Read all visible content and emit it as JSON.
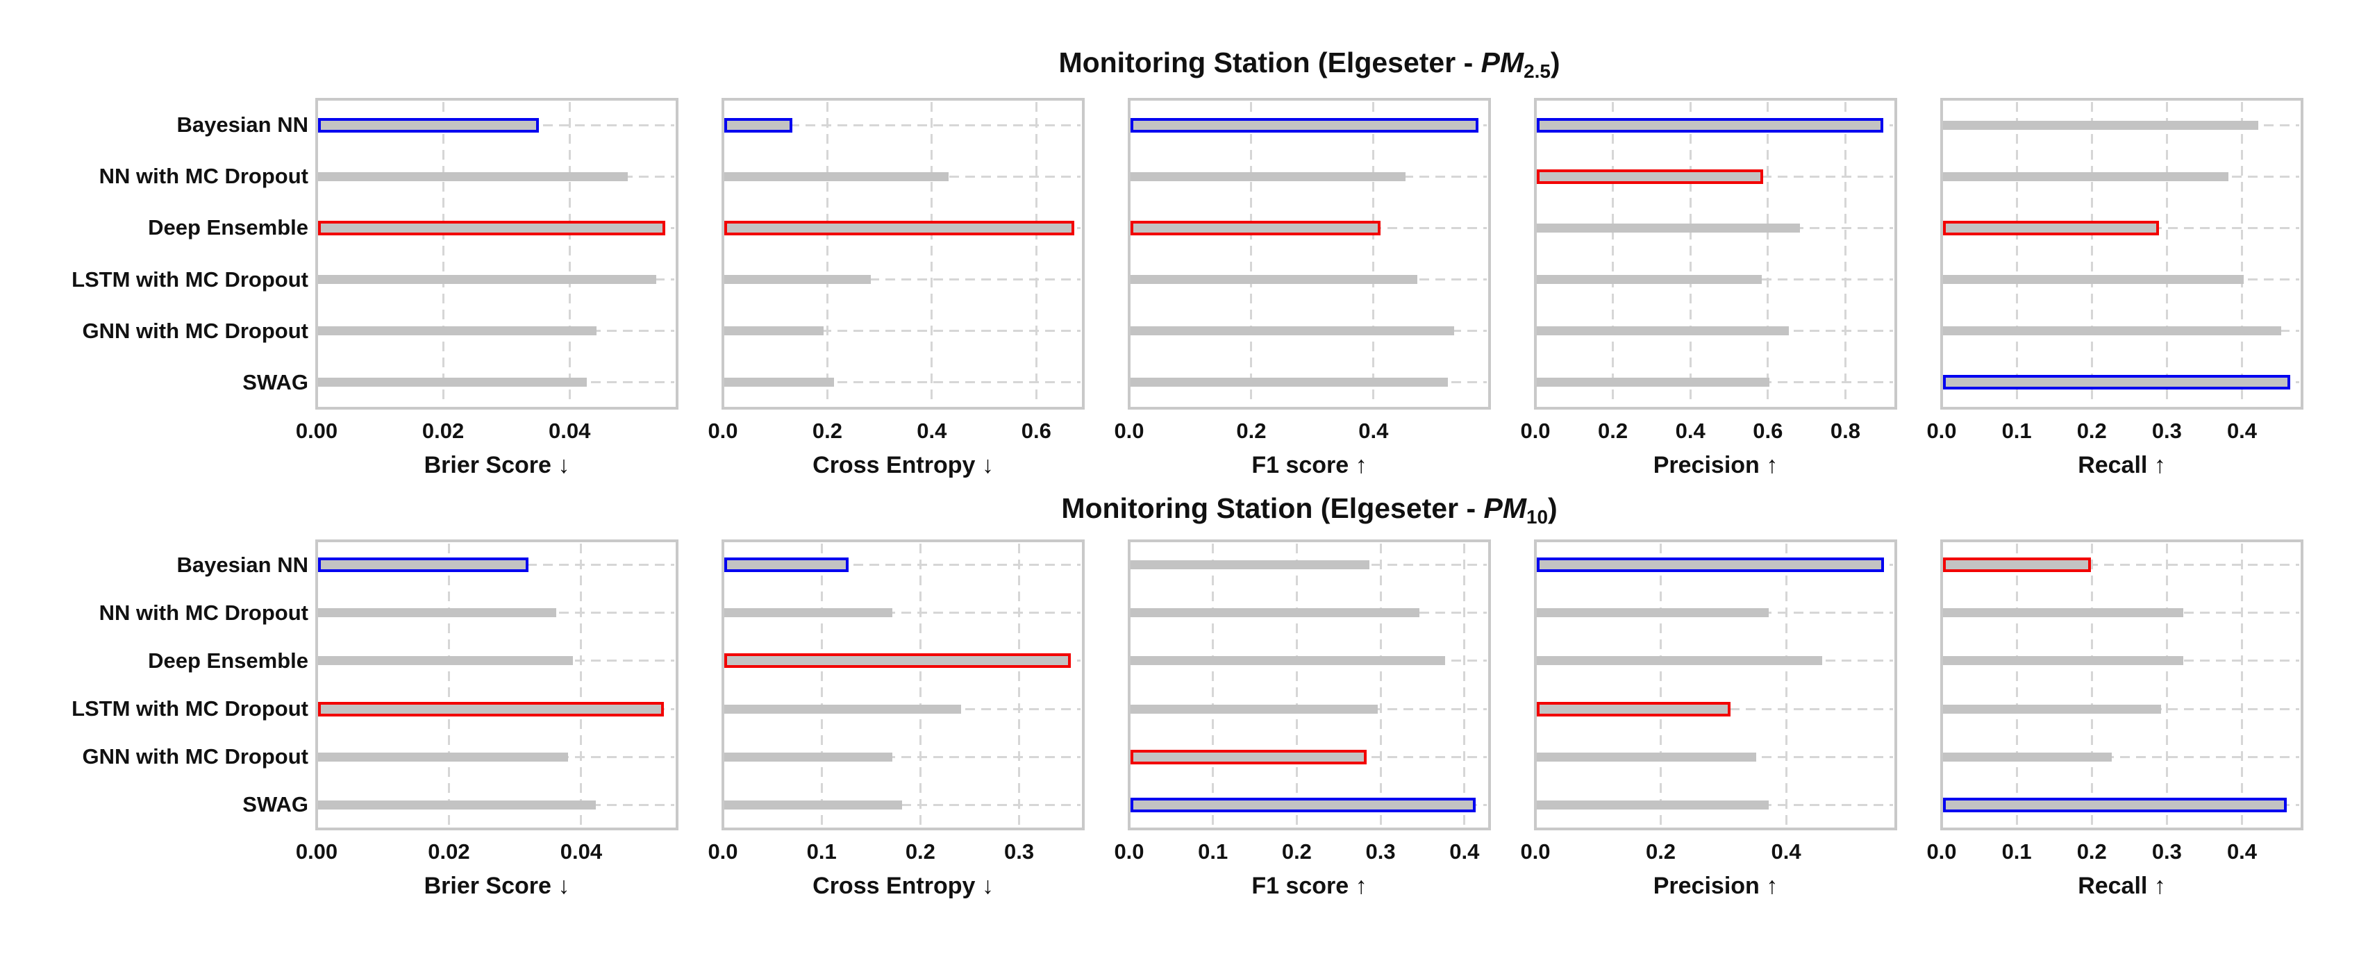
{
  "figure": {
    "background": "#ffffff",
    "colors": {
      "bar_grey": "#c3c3c3",
      "best_outline_blue": "#0202f0",
      "worst_outline_red": "#f20202",
      "grid": "#d6d6d6",
      "spine": "#c9c9c9",
      "text": "#111111"
    }
  },
  "chart_data": {
    "type": "bar",
    "orientation": "horizontal",
    "grid": "dashed",
    "legend_position": "none",
    "categories": [
      "Bayesian NN",
      "NN with MC Dropout",
      "Deep Ensemble",
      "LSTM with MC Dropout",
      "GNN with MC Dropout",
      "SWAG"
    ],
    "highlight_meaning": {
      "blue_outline": "best model for metric",
      "red_outline": "worst model for metric"
    },
    "rows": [
      {
        "title": {
          "prefix": "Monitoring Station (Elgeseter - ",
          "pm": "PM",
          "sub": "2.5",
          "suffix": ")",
          "full_text": "Monitoring Station (Elgeseter - PM2.5)"
        },
        "panels": [
          {
            "xlabel": "Brier Score ↓",
            "xlim": [
              0,
              0.057
            ],
            "tick_values": [
              0,
              0.02,
              0.04
            ],
            "ticks": [
              "0.00",
              "0.02",
              "0.04"
            ],
            "values": [
              0.034,
              0.049,
              0.054,
              0.0535,
              0.044,
              0.0425
            ],
            "best_index": 0,
            "worst_index": 2
          },
          {
            "xlabel": "Cross Entropy ↓",
            "xlim": [
              0,
              0.69
            ],
            "tick_values": [
              0,
              0.2,
              0.4,
              0.6
            ],
            "ticks": [
              "0.0",
              "0.2",
              "0.4",
              "0.6"
            ],
            "values": [
              0.12,
              0.43,
              0.66,
              0.28,
              0.19,
              0.21
            ],
            "best_index": 0,
            "worst_index": 2
          },
          {
            "xlabel": "F1 score ↑",
            "xlim": [
              0,
              0.59
            ],
            "tick_values": [
              0,
              0.2,
              0.4
            ],
            "ticks": [
              "0.0",
              "0.2",
              "0.4"
            ],
            "values": [
              0.56,
              0.45,
              0.4,
              0.47,
              0.53,
              0.52
            ],
            "best_index": 0,
            "worst_index": 2
          },
          {
            "xlabel": "Precision ↑",
            "xlim": [
              0,
              0.93
            ],
            "tick_values": [
              0,
              0.2,
              0.4,
              0.6,
              0.8
            ],
            "ticks": [
              "0.0",
              "0.2",
              "0.4",
              "0.6",
              "0.8"
            ],
            "values": [
              0.88,
              0.57,
              0.68,
              0.58,
              0.65,
              0.6
            ],
            "best_index": 0,
            "worst_index": 1
          },
          {
            "xlabel": "Recall ↑",
            "xlim": [
              0,
              0.48
            ],
            "tick_values": [
              0,
              0.1,
              0.2,
              0.3,
              0.4
            ],
            "ticks": [
              "0.0",
              "0.1",
              "0.2",
              "0.3",
              "0.4"
            ],
            "values": [
              0.42,
              0.38,
              0.28,
              0.4,
              0.45,
              0.455
            ],
            "best_index": 5,
            "worst_index": 2
          }
        ]
      },
      {
        "title": {
          "prefix": "Monitoring Station (Elgeseter - ",
          "pm": "PM",
          "sub": "10",
          "suffix": ")",
          "full_text": "Monitoring Station (Elgeseter - PM10)"
        },
        "panels": [
          {
            "xlabel": "Brier Score ↓",
            "xlim": [
              0,
              0.0545
            ],
            "tick_values": [
              0,
              0.02,
              0.04
            ],
            "ticks": [
              "0.00",
              "0.02",
              "0.04"
            ],
            "values": [
              0.031,
              0.036,
              0.0385,
              0.0515,
              0.0378,
              0.042
            ],
            "best_index": 0,
            "worst_index": 3
          },
          {
            "xlabel": "Cross Entropy ↓",
            "xlim": [
              0,
              0.365
            ],
            "tick_values": [
              0,
              0.1,
              0.2,
              0.3
            ],
            "ticks": [
              "0.0",
              "0.1",
              "0.2",
              "0.3"
            ],
            "values": [
              0.12,
              0.17,
              0.345,
              0.24,
              0.17,
              0.18
            ],
            "best_index": 0,
            "worst_index": 2
          },
          {
            "xlabel": "F1 score ↑",
            "xlim": [
              0,
              0.43
            ],
            "tick_values": [
              0,
              0.1,
              0.2,
              0.3,
              0.4
            ],
            "ticks": [
              "0.0",
              "0.1",
              "0.2",
              "0.3",
              "0.4"
            ],
            "values": [
              0.285,
              0.345,
              0.375,
              0.295,
              0.275,
              0.405
            ],
            "best_index": 5,
            "worst_index": 4
          },
          {
            "xlabel": "Precision ↑",
            "xlim": [
              0,
              0.575
            ],
            "tick_values": [
              0,
              0.2,
              0.4
            ],
            "ticks": [
              "0.0",
              "0.2",
              "0.4"
            ],
            "values": [
              0.545,
              0.37,
              0.455,
              0.3,
              0.35,
              0.37
            ],
            "best_index": 0,
            "worst_index": 3
          },
          {
            "xlabel": "Recall ↑",
            "xlim": [
              0,
              0.48
            ],
            "tick_values": [
              0,
              0.1,
              0.2,
              0.3,
              0.4
            ],
            "ticks": [
              "0.0",
              "0.1",
              "0.2",
              "0.3",
              "0.4"
            ],
            "values": [
              0.19,
              0.32,
              0.32,
              0.29,
              0.225,
              0.45
            ],
            "best_index": 5,
            "worst_index": 0
          }
        ]
      }
    ]
  }
}
